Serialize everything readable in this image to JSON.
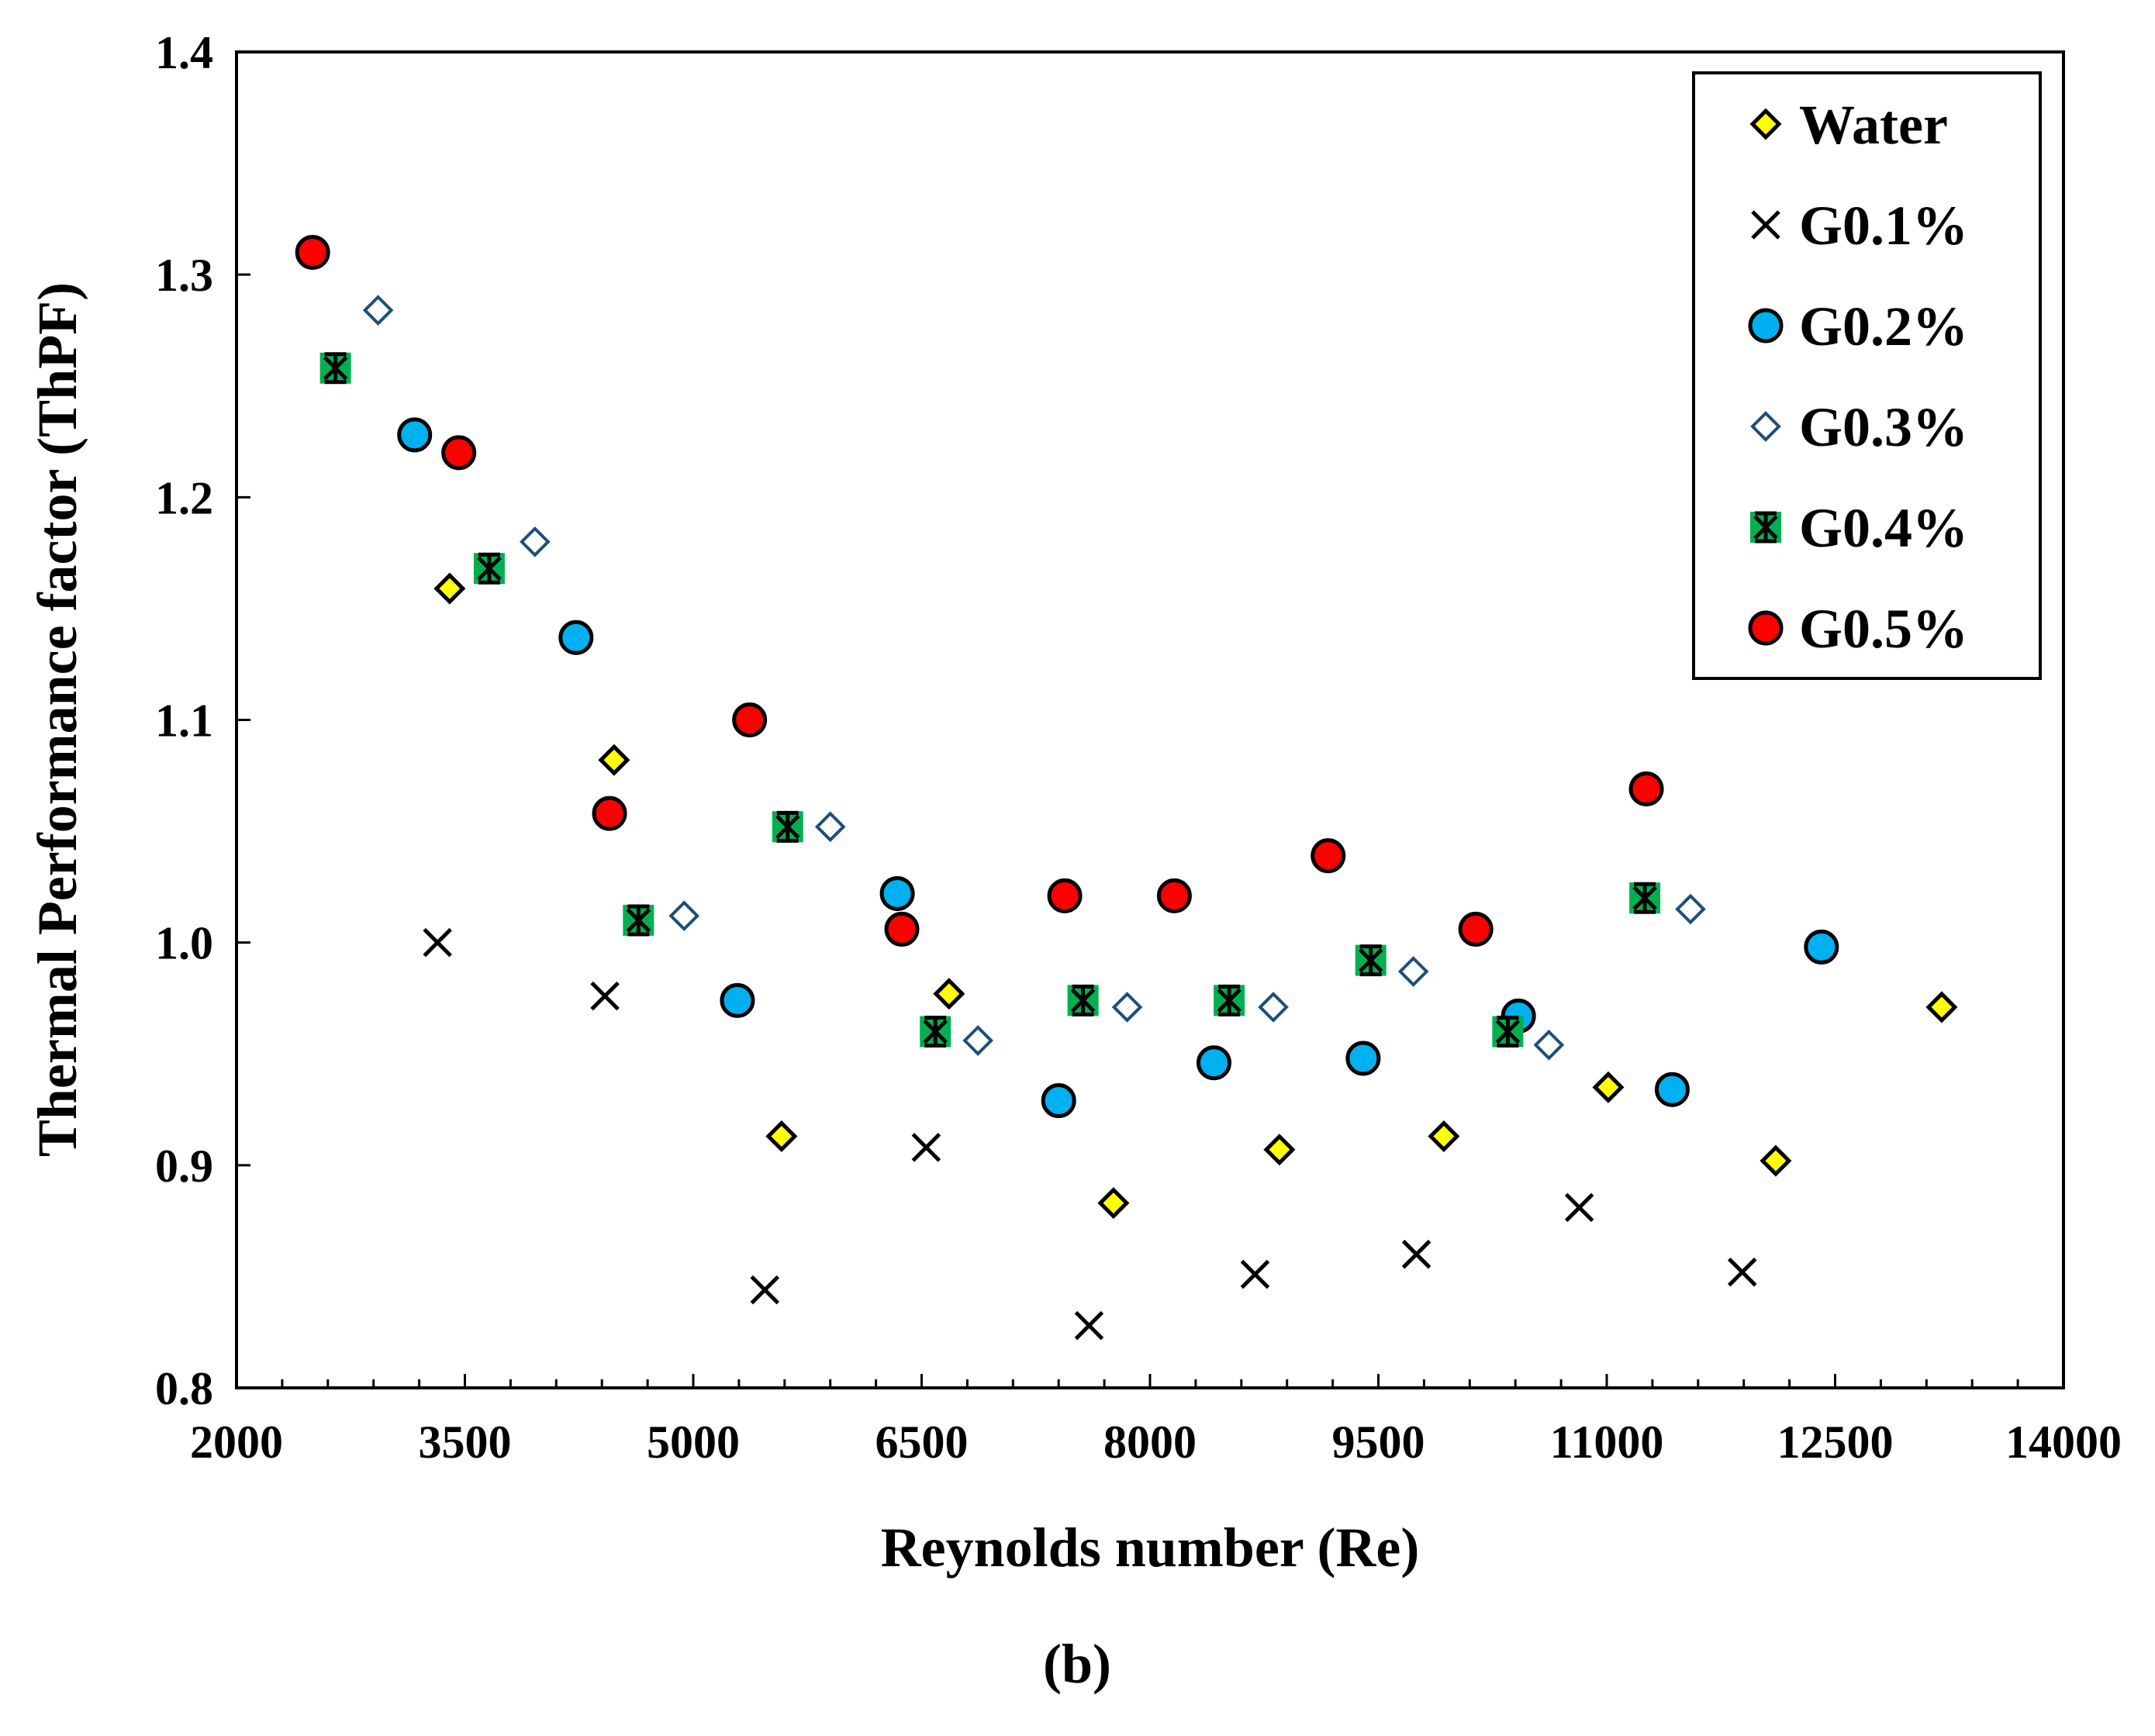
{
  "chart_data": {
    "type": "scatter",
    "title": "",
    "panel_label": "(b)",
    "xlabel": "Reynolds number (Re)",
    "ylabel": "Thermal Performance factor (ThPF)",
    "xlim": [
      2000,
      14000
    ],
    "ylim": [
      0.8,
      1.4
    ],
    "x_ticks": [
      2000,
      3500,
      5000,
      6500,
      8000,
      9500,
      11000,
      12500,
      14000
    ],
    "x_tick_labels": [
      "2000",
      "3500",
      "5000",
      "6500",
      "8000",
      "9500",
      "11000",
      "12500",
      "14000"
    ],
    "y_ticks": [
      0.8,
      0.9,
      1.0,
      1.1,
      1.2,
      1.3,
      1.4
    ],
    "y_tick_labels": [
      "0.8",
      "0.9",
      "1.0",
      "1.1",
      "1.2",
      "1.3",
      "1.4"
    ],
    "grid": false,
    "legend_position": "top-right",
    "series": [
      {
        "name": "Water",
        "marker": "diamond",
        "fill": "#ffff00",
        "stroke": "#000000",
        "x": [
          3400,
          4480,
          5580,
          6680,
          7760,
          8850,
          9930,
          11010,
          12110,
          13200
        ],
        "y": [
          1.159,
          1.082,
          0.913,
          0.977,
          0.883,
          0.907,
          0.913,
          0.935,
          0.902,
          0.971
        ]
      },
      {
        "name": "G0.1%",
        "marker": "x",
        "fill": "none",
        "stroke": "#000000",
        "x": [
          3320,
          4420,
          5470,
          6530,
          7600,
          8690,
          9750,
          10820,
          11890
        ],
        "y": [
          1.0,
          0.976,
          0.844,
          0.908,
          0.828,
          0.851,
          0.86,
          0.881,
          0.852
        ]
      },
      {
        "name": "G0.2%",
        "marker": "circle",
        "fill": "#00b0f0",
        "stroke": "#000000",
        "x": [
          3170,
          4230,
          5290,
          6340,
          7400,
          8420,
          9400,
          10420,
          11430,
          12410
        ],
        "y": [
          1.228,
          1.137,
          0.974,
          1.022,
          0.929,
          0.946,
          0.948,
          0.967,
          0.934,
          0.998
        ]
      },
      {
        "name": "G0.3%",
        "marker": "open-diamond",
        "fill": "#ffffff",
        "stroke": "#1f4e79",
        "x": [
          2930,
          3960,
          4940,
          5900,
          6870,
          7850,
          8810,
          9730,
          10620,
          11550
        ],
        "y": [
          1.284,
          1.18,
          1.012,
          1.052,
          0.956,
          0.971,
          0.971,
          0.987,
          0.954,
          1.015
        ]
      },
      {
        "name": "G0.4%",
        "marker": "square-star",
        "fill": "#00b050",
        "stroke": "#000000",
        "x": [
          2650,
          3660,
          4640,
          5620,
          6590,
          7560,
          8520,
          9450,
          10350,
          11250
        ],
        "y": [
          1.258,
          1.168,
          1.01,
          1.052,
          0.96,
          0.974,
          0.974,
          0.992,
          0.96,
          1.02
        ]
      },
      {
        "name": "G0.5%",
        "marker": "circle",
        "fill": "#ff0000",
        "stroke": "#000000",
        "x": [
          2500,
          3460,
          4450,
          5370,
          6370,
          7440,
          8160,
          9170,
          10140,
          11260
        ],
        "y": [
          1.31,
          1.22,
          1.058,
          1.1,
          1.006,
          1.021,
          1.021,
          1.039,
          1.006,
          1.069
        ]
      }
    ]
  }
}
